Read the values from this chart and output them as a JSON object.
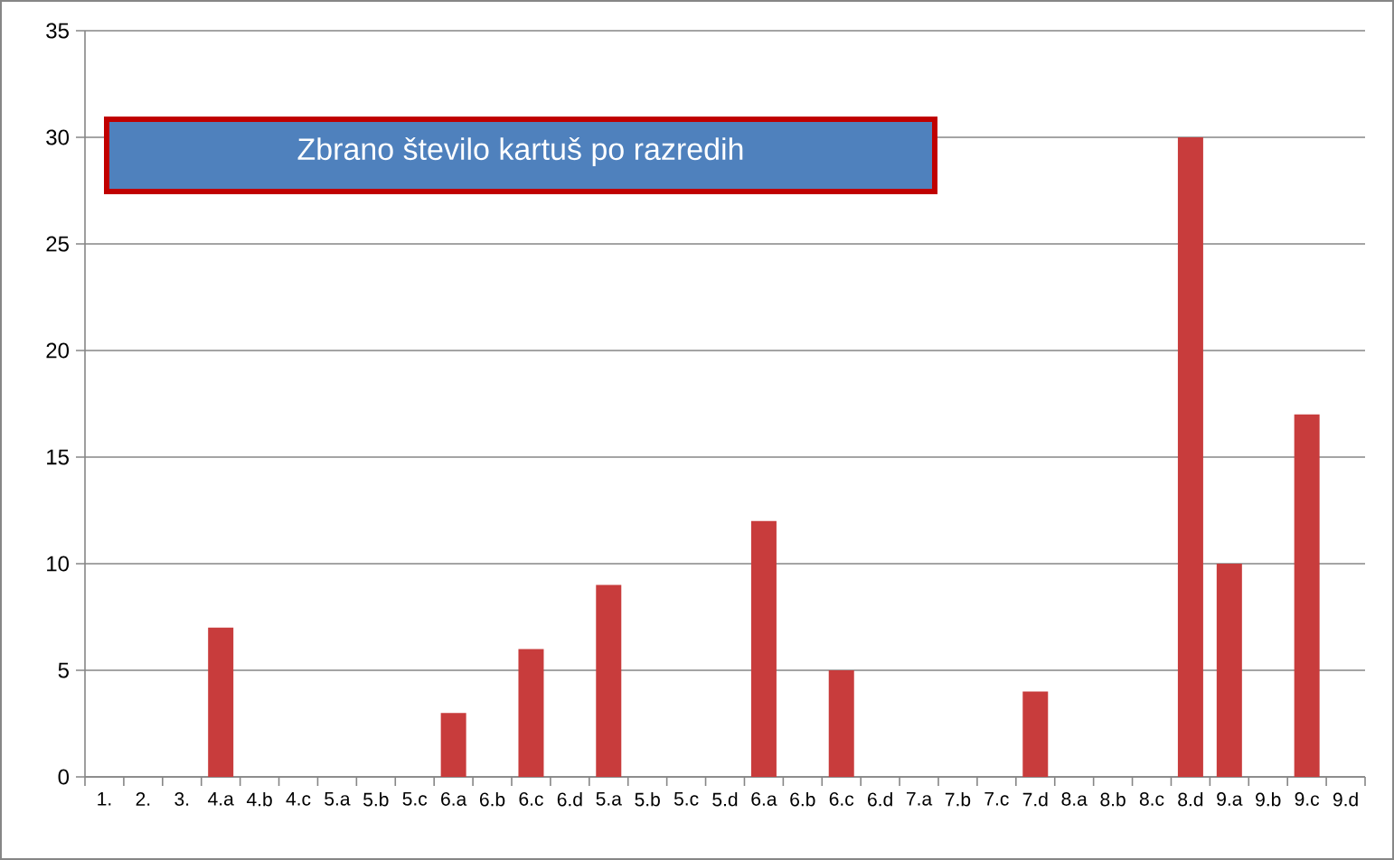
{
  "chart_data": {
    "type": "bar",
    "title": "Zbrano število kartuš po razredih",
    "categories": [
      "1.",
      "2.",
      "3.",
      "4.a",
      "4.b",
      "4.c",
      "5.a",
      "5.b",
      "5.c",
      "6.a",
      "6.b",
      "6.c",
      "6.d",
      "5.a",
      "5.b",
      "5.c",
      "5.d",
      "6.a",
      "6.b",
      "6.c",
      "6.d",
      "7.a",
      "7.b",
      "7.c",
      "7.d",
      "8.a",
      "8.b",
      "8.c",
      "8.d",
      "9.a",
      "9.b",
      "9.c",
      "9.d"
    ],
    "values": [
      0,
      0,
      0,
      7,
      0,
      0,
      0,
      0,
      0,
      3,
      0,
      6,
      0,
      9,
      0,
      0,
      0,
      12,
      0,
      5,
      0,
      0,
      0,
      0,
      4,
      0,
      0,
      0,
      30,
      10,
      0,
      17,
      0
    ],
    "color": "#c83c3c",
    "ylim": [
      0,
      35
    ],
    "yticks": [
      0,
      5,
      10,
      15,
      20,
      25,
      30,
      35
    ],
    "grid": "y"
  }
}
